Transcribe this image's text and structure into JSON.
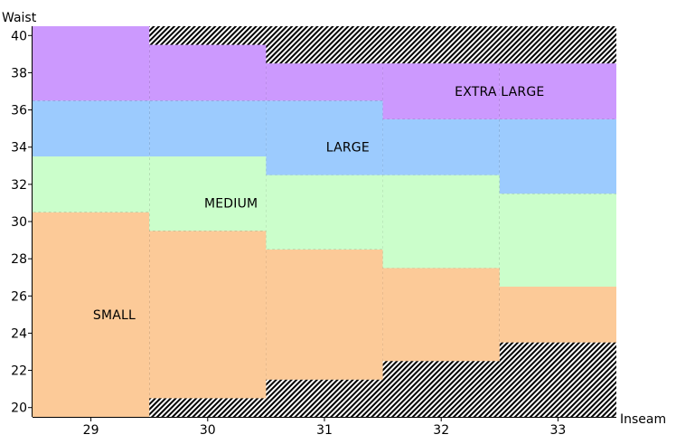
{
  "chart_data": {
    "type": "heatmap",
    "title": "",
    "xlabel": "Inseam",
    "ylabel": "Waist",
    "xlim": [
      28.5,
      33.5
    ],
    "ylim": [
      19.5,
      40.5
    ],
    "x_ticks": [
      29,
      30,
      31,
      32,
      33
    ],
    "y_ticks": [
      20,
      22,
      24,
      26,
      28,
      30,
      32,
      34,
      36,
      38,
      40
    ],
    "grid": false,
    "legend": "none",
    "pattern": "diagonal-hatch (no size)",
    "sizes": [
      {
        "name": "SMALL",
        "color": "#fcca98",
        "ranges": [
          {
            "inseam": 29,
            "waist_min": 20,
            "waist_max": 30
          },
          {
            "inseam": 30,
            "waist_min": 21,
            "waist_max": 29
          },
          {
            "inseam": 31,
            "waist_min": 22,
            "waist_max": 28
          },
          {
            "inseam": 32,
            "waist_min": 23,
            "waist_max": 27
          },
          {
            "inseam": 33,
            "waist_min": 24,
            "waist_max": 26
          }
        ],
        "label_position": {
          "inseam": 29.2,
          "waist": 25
        }
      },
      {
        "name": "MEDIUM",
        "color": "#cbfecb",
        "ranges": [
          {
            "inseam": 29,
            "waist_min": 31,
            "waist_max": 33
          },
          {
            "inseam": 30,
            "waist_min": 30,
            "waist_max": 33
          },
          {
            "inseam": 31,
            "waist_min": 29,
            "waist_max": 32
          },
          {
            "inseam": 32,
            "waist_min": 28,
            "waist_max": 32
          },
          {
            "inseam": 33,
            "waist_min": 27,
            "waist_max": 31
          }
        ],
        "label_position": {
          "inseam": 30.2,
          "waist": 31
        }
      },
      {
        "name": "LARGE",
        "color": "#9ccbfe",
        "ranges": [
          {
            "inseam": 29,
            "waist_min": 34,
            "waist_max": 36
          },
          {
            "inseam": 30,
            "waist_min": 34,
            "waist_max": 36
          },
          {
            "inseam": 31,
            "waist_min": 33,
            "waist_max": 36
          },
          {
            "inseam": 32,
            "waist_min": 33,
            "waist_max": 35
          },
          {
            "inseam": 33,
            "waist_min": 32,
            "waist_max": 35
          }
        ],
        "label_position": {
          "inseam": 31.2,
          "waist": 34
        }
      },
      {
        "name": "EXTRA LARGE",
        "color": "#cc99fe",
        "ranges": [
          {
            "inseam": 29,
            "waist_min": 37,
            "waist_max": 40
          },
          {
            "inseam": 30,
            "waist_min": 37,
            "waist_max": 39
          },
          {
            "inseam": 31,
            "waist_min": 37,
            "waist_max": 38
          },
          {
            "inseam": 32,
            "waist_min": 36,
            "waist_max": 38
          },
          {
            "inseam": 33,
            "waist_min": 36,
            "waist_max": 38
          }
        ],
        "label_position": {
          "inseam": 32.5,
          "waist": 37
        }
      }
    ]
  }
}
